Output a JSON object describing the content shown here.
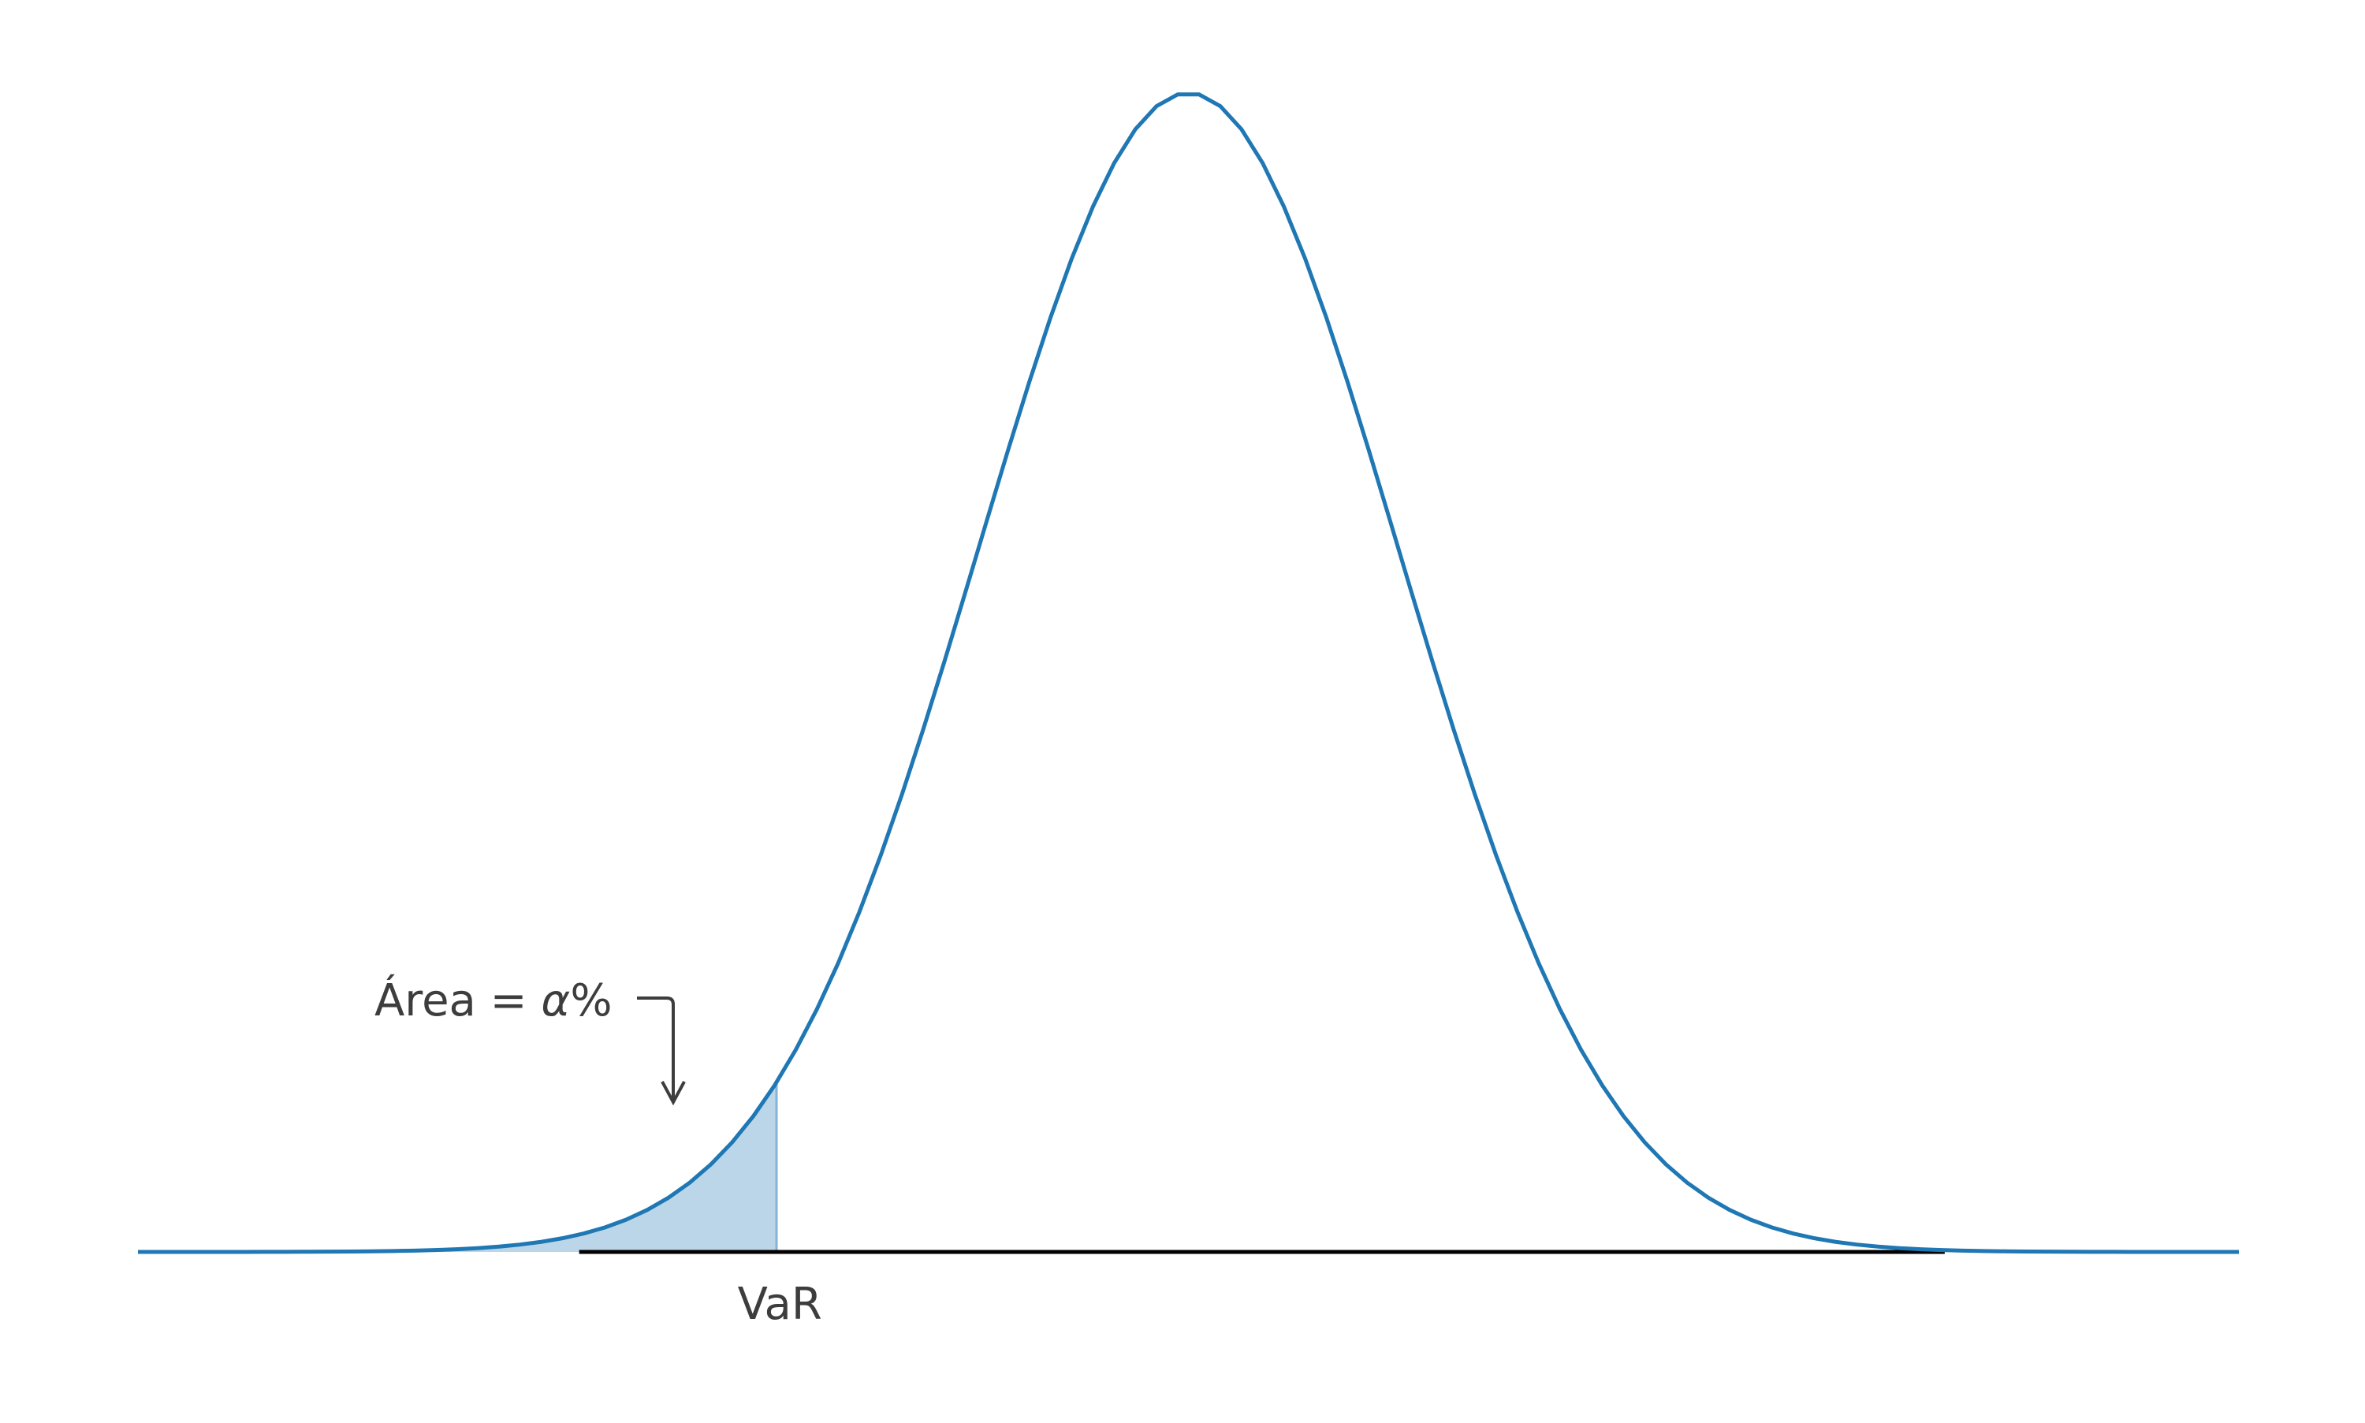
{
  "chart_data": {
    "type": "area",
    "title": "",
    "xlabel": "",
    "ylabel": "",
    "distribution": "normal",
    "mean": 0,
    "std": 1,
    "xlim": [
      -5,
      5
    ],
    "ylim": [
      0,
      0.3989
    ],
    "grid": false,
    "axes_visible": false,
    "colors": {
      "curve": "#1f77b4",
      "shaded_area": "#1f77b4",
      "baseline": "#000000",
      "annotation_text": "#3d3d3d"
    },
    "shaded_region": {
      "from": "-inf",
      "to": -1.96
    },
    "var_marker": {
      "x": -1.96,
      "label": "VaR"
    },
    "annotation": {
      "prefix": "Área = ",
      "symbol": "α",
      "suffix": "%",
      "arrow_direction": "down"
    }
  }
}
